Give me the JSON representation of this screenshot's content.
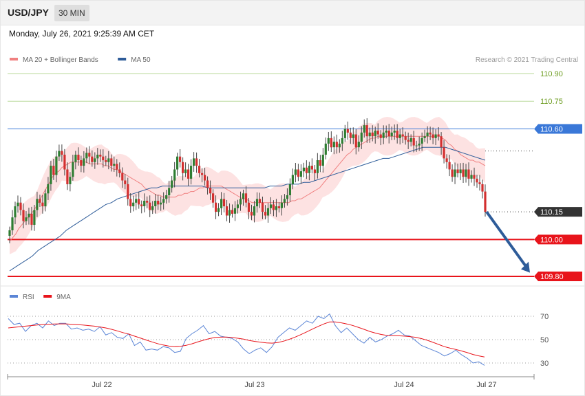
{
  "header": {
    "symbol": "USD/JPY",
    "timeframe": "30 MIN",
    "datetime": "Monday, July 26, 2021 9:25:39 AM CET"
  },
  "credit": "Research © 2021 Trading Central",
  "legend_price": [
    {
      "label": "MA 20 + Bollinger Bands",
      "color": "#f08080"
    },
    {
      "label": "MA 50",
      "color": "#2e5c99"
    }
  ],
  "legend_rsi": [
    {
      "label": "RSI",
      "color": "#5b85d6"
    },
    {
      "label": "9MA",
      "color": "#e8141b"
    }
  ],
  "colors": {
    "up": "#2e7d32",
    "down": "#d32f2f",
    "resistance": "#6b9b1e",
    "pivot": "#3a78d8",
    "support": "#e8141b",
    "current": "#333333",
    "bands": "#fde2e2",
    "arrow": "#2e5c99"
  },
  "chart_data": [
    {
      "type": "candlestick",
      "title": "USD/JPY 30 MIN",
      "x_labels": [
        "Jul 22",
        "Jul 23",
        "Jul 24",
        "Jul 27"
      ],
      "ylim": [
        109.79,
        110.97
      ],
      "levels": [
        {
          "value": 110.9,
          "label": "110.90",
          "kind": "resistance"
        },
        {
          "value": 110.75,
          "label": "110.75",
          "kind": "resistance"
        },
        {
          "value": 110.6,
          "label": "110.60",
          "kind": "pivot"
        },
        {
          "value": 110.15,
          "label": "110.15",
          "kind": "current"
        },
        {
          "value": 110.0,
          "label": "110.00",
          "kind": "support"
        },
        {
          "value": 109.8,
          "label": "109.80",
          "kind": "support"
        }
      ],
      "closes": [
        110.05,
        110.12,
        110.18,
        110.2,
        110.16,
        110.1,
        110.12,
        110.14,
        110.08,
        110.16,
        110.22,
        110.2,
        110.18,
        110.25,
        110.3,
        110.4,
        110.35,
        110.45,
        110.48,
        110.46,
        110.38,
        110.3,
        110.34,
        110.42,
        110.46,
        110.43,
        110.4,
        110.44,
        110.47,
        110.45,
        110.42,
        110.44,
        110.46,
        110.45,
        110.43,
        110.42,
        110.44,
        110.4,
        110.41,
        110.38,
        110.36,
        110.32,
        110.3,
        110.22,
        110.18,
        110.2,
        110.22,
        110.19,
        110.18,
        110.21,
        110.2,
        110.16,
        110.18,
        110.21,
        110.19,
        110.2,
        110.22,
        110.24,
        110.28,
        110.32,
        110.38,
        110.45,
        110.42,
        110.36,
        110.38,
        110.33,
        110.4,
        110.44,
        110.4,
        110.36,
        110.35,
        110.32,
        110.28,
        110.25,
        110.2,
        110.15,
        110.17,
        110.22,
        110.18,
        110.13,
        110.16,
        110.14,
        110.17,
        110.19,
        110.22,
        110.25,
        110.2,
        110.15,
        110.13,
        110.18,
        110.22,
        110.2,
        110.15,
        110.13,
        110.17,
        110.19,
        110.16,
        110.18,
        110.17,
        110.2,
        110.22,
        110.24,
        110.3,
        110.35,
        110.38,
        110.34,
        110.37,
        110.39,
        110.36,
        110.4,
        110.38,
        110.36,
        110.43,
        110.4,
        110.46,
        110.52,
        110.55,
        110.5,
        110.53,
        110.5,
        110.52,
        110.55,
        110.6,
        110.58,
        110.55,
        110.57,
        110.5,
        110.53,
        110.58,
        110.62,
        110.56,
        110.58,
        110.56,
        110.59,
        110.57,
        110.55,
        110.58,
        110.59,
        110.56,
        110.58,
        110.59,
        110.55,
        110.57,
        110.56,
        110.54,
        110.53,
        110.55,
        110.51,
        110.51,
        110.52,
        110.55,
        110.56,
        110.58,
        110.57,
        110.55,
        110.57,
        110.56,
        110.5,
        110.44,
        110.42,
        110.38,
        110.34,
        110.38,
        110.36,
        110.38,
        110.34,
        110.38,
        110.33,
        110.35,
        110.33,
        110.31,
        110.3,
        110.26,
        110.15
      ],
      "ma20": [
        109.99,
        110.01,
        110.03,
        110.06,
        110.08,
        110.1,
        110.12,
        110.14,
        110.16,
        110.19,
        110.22,
        110.25,
        110.28,
        110.31,
        110.34,
        110.36,
        110.37,
        110.39,
        110.4,
        110.41,
        110.42,
        110.42,
        110.42,
        110.42,
        110.42,
        110.42,
        110.41,
        110.41,
        110.41,
        110.41,
        110.41,
        110.4,
        110.4,
        110.39,
        110.38,
        110.38,
        110.37,
        110.36,
        110.35,
        110.34,
        110.33,
        110.32,
        110.31,
        110.3,
        110.28,
        110.27,
        110.26,
        110.25,
        110.24,
        110.24,
        110.23,
        110.23,
        110.23,
        110.23,
        110.23,
        110.24,
        110.24,
        110.25,
        110.25,
        110.26,
        110.26,
        110.27,
        110.28,
        110.28,
        110.29,
        110.29,
        110.29,
        110.29,
        110.29,
        110.29,
        110.28,
        110.27,
        110.26,
        110.25,
        110.24,
        110.23,
        110.22,
        110.22,
        110.21,
        110.2,
        110.2,
        110.2,
        110.2,
        110.2,
        110.2,
        110.2,
        110.2,
        110.2,
        110.2,
        110.2,
        110.2,
        110.2,
        110.21,
        110.21,
        110.22,
        110.22,
        110.23,
        110.24,
        110.25,
        110.26,
        110.27,
        110.28,
        110.3,
        110.32,
        110.34,
        110.36,
        110.38,
        110.4,
        110.42,
        110.44,
        110.46,
        110.47,
        110.49,
        110.5,
        110.51,
        110.52,
        110.53,
        110.54,
        110.55,
        110.55,
        110.56,
        110.56,
        110.56,
        110.56,
        110.56,
        110.56,
        110.56,
        110.56,
        110.56,
        110.56,
        110.56,
        110.56,
        110.56,
        110.56,
        110.56,
        110.56,
        110.56,
        110.56,
        110.56,
        110.56,
        110.56,
        110.55,
        110.54,
        110.52,
        110.51,
        110.49,
        110.48,
        110.46,
        110.45,
        110.44,
        110.43,
        110.43,
        110.42,
        110.42,
        110.41,
        110.4
      ],
      "ma50": [
        109.83,
        109.85,
        109.87,
        109.89,
        109.91,
        109.94,
        109.96,
        109.98,
        110.0,
        110.02,
        110.05,
        110.07,
        110.09,
        110.11,
        110.13,
        110.15,
        110.17,
        110.19,
        110.2,
        110.22,
        110.23,
        110.24,
        110.25,
        110.26,
        110.27,
        110.28,
        110.28,
        110.29,
        110.29,
        110.29,
        110.29,
        110.29,
        110.29,
        110.29,
        110.29,
        110.28,
        110.28,
        110.28,
        110.28,
        110.28,
        110.28,
        110.28,
        110.28,
        110.28,
        110.28,
        110.28,
        110.29,
        110.29,
        110.29,
        110.3,
        110.3,
        110.3,
        110.31,
        110.31,
        110.32,
        110.33,
        110.34,
        110.35,
        110.36,
        110.37,
        110.38,
        110.39,
        110.4,
        110.41,
        110.42,
        110.43,
        110.44,
        110.44,
        110.45,
        110.46,
        110.47,
        110.48,
        110.49,
        110.5,
        110.5,
        110.5,
        110.5,
        110.5,
        110.49,
        110.48,
        110.47,
        110.46,
        110.45,
        110.44,
        110.43
      ],
      "band_width": 0.07
    },
    {
      "type": "line",
      "title": "RSI",
      "ylim": [
        20,
        82
      ],
      "yticks": [
        30,
        50,
        70
      ],
      "series": [
        {
          "name": "RSI",
          "values": [
            68,
            63,
            64,
            57,
            62,
            64,
            60,
            66,
            62,
            64,
            64,
            59,
            60,
            58,
            59,
            57,
            61,
            54,
            56,
            52,
            51,
            55,
            45,
            48,
            41,
            42,
            41,
            44,
            43,
            39,
            40,
            51,
            55,
            58,
            62,
            55,
            57,
            53,
            52,
            51,
            48,
            42,
            38,
            41,
            43,
            39,
            44,
            52,
            56,
            60,
            58,
            62,
            66,
            64,
            70,
            68,
            72,
            62,
            56,
            60,
            55,
            50,
            47,
            52,
            48,
            50,
            53,
            55,
            58,
            54,
            53,
            49,
            45,
            43,
            41,
            39,
            36,
            38,
            41,
            37,
            34,
            30,
            31,
            28
          ]
        },
        {
          "name": "9MA",
          "values": [
            60,
            60.5,
            61,
            61.5,
            62,
            62.5,
            63,
            63.2,
            63.4,
            63.5,
            63.5,
            63.2,
            62.9,
            62.5,
            62,
            61.5,
            60.8,
            60,
            58.8,
            57.5,
            56,
            54.7,
            53,
            51.4,
            49.7,
            48.1,
            46.6,
            45.4,
            44.5,
            44,
            44.3,
            45.1,
            46.4,
            48,
            49.5,
            50.8,
            51.8,
            52.1,
            52.2,
            51.8,
            51.2,
            50.4,
            49.3,
            48.5,
            47.8,
            47.2,
            47,
            47.6,
            48.7,
            50.3,
            52.2,
            54.3,
            56.6,
            59,
            61.3,
            63.4,
            65.1,
            65.2,
            64.4,
            63.4,
            62.2,
            60.5,
            58.8,
            57,
            55.6,
            54.4,
            53.6,
            53.5,
            53.3,
            53,
            52.6,
            52,
            50.9,
            49.5,
            47.7,
            45.9,
            44,
            42.7,
            41.6,
            40.3,
            38.9,
            37.3,
            36.1,
            35.2
          ]
        }
      ]
    }
  ]
}
